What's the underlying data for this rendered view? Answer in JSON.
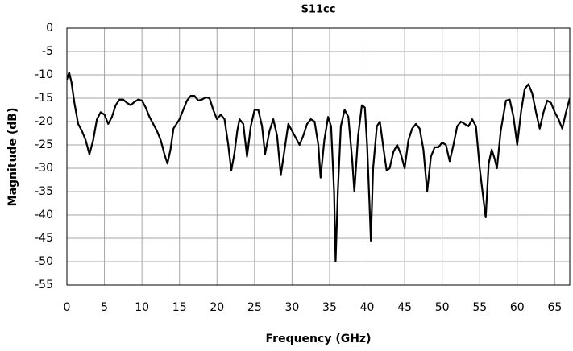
{
  "chart_data": {
    "type": "line",
    "title": "S11cc",
    "x_label": "Frequency (GHz)",
    "y_label": "Magnitude (dB)",
    "xlim": [
      0,
      67
    ],
    "ylim": [
      -55,
      0
    ],
    "xticks": [
      0,
      5,
      10,
      15,
      20,
      25,
      30,
      35,
      40,
      45,
      50,
      55,
      60,
      65
    ],
    "yticks": [
      0,
      -5,
      -10,
      -15,
      -20,
      -25,
      -30,
      -35,
      -40,
      -45,
      -50,
      -55
    ],
    "grid": true,
    "x": [
      0,
      0.3,
      0.6,
      1,
      1.5,
      2,
      2.5,
      3,
      3.5,
      4,
      4.5,
      5,
      5.5,
      6,
      6.5,
      7,
      7.5,
      8,
      8.5,
      9,
      9.5,
      10,
      10.5,
      11,
      12,
      12.5,
      13,
      13.4,
      13.8,
      14.2,
      15,
      15.5,
      16,
      16.5,
      17,
      17.5,
      18,
      18.5,
      19,
      19.5,
      20,
      20.5,
      21,
      21.5,
      21.9,
      22.3,
      22.7,
      23,
      23.5,
      24,
      24.5,
      25,
      25.5,
      26,
      26.4,
      27,
      27.5,
      28,
      28.5,
      29,
      29.5,
      30,
      31,
      31.5,
      32,
      32.5,
      33,
      33.5,
      33.8,
      34.3,
      34.8,
      35.2,
      35.6,
      35.8,
      36.1,
      36.5,
      37,
      37.5,
      38,
      38.3,
      38.8,
      39.3,
      39.7,
      40,
      40.3,
      40.5,
      40.8,
      41.3,
      41.7,
      42.2,
      42.6,
      43,
      43.5,
      44,
      44.5,
      45,
      45.5,
      46,
      46.5,
      47,
      47.5,
      48,
      48.5,
      49,
      49.5,
      50,
      50.5,
      51,
      51.5,
      52,
      52.5,
      53,
      53.5,
      54,
      54.5,
      55,
      55.6,
      55.8,
      56.2,
      56.6,
      57,
      57.3,
      57.8,
      58.5,
      59,
      59.5,
      60,
      60.5,
      61,
      61.5,
      62,
      62.5,
      63,
      63.5,
      64,
      64.5,
      65,
      65.5,
      66,
      66.5,
      67
    ],
    "series": [
      {
        "name": "S11cc",
        "color": "#000000",
        "values": [
          -11,
          -9.5,
          -11.5,
          -16,
          -20.5,
          -22,
          -24,
          -27,
          -24,
          -19.5,
          -18,
          -18.5,
          -20.5,
          -19,
          -16.5,
          -15.3,
          -15.3,
          -16,
          -16.5,
          -15.8,
          -15.3,
          -15.5,
          -17,
          -19,
          -22,
          -24,
          -27,
          -29,
          -26,
          -21.5,
          -19.5,
          -17.5,
          -15.5,
          -14.5,
          -14.5,
          -15.5,
          -15.3,
          -14.8,
          -15,
          -17.5,
          -19.5,
          -18.5,
          -19.5,
          -25,
          -30.5,
          -27,
          -22,
          -19.5,
          -20.5,
          -27.5,
          -21,
          -17.5,
          -17.5,
          -21,
          -27,
          -22,
          -19.5,
          -23,
          -31.5,
          -26,
          -20.5,
          -22,
          -25,
          -23,
          -20.5,
          -19.5,
          -20,
          -25,
          -32,
          -24,
          -19,
          -21,
          -35,
          -50,
          -35,
          -21,
          -17.5,
          -19,
          -28,
          -35,
          -23,
          -16.5,
          -17,
          -25,
          -37,
          -45.5,
          -30,
          -21,
          -20,
          -26,
          -30.5,
          -30,
          -26.5,
          -25,
          -27,
          -30,
          -24,
          -21.5,
          -20.5,
          -21.5,
          -26,
          -35,
          -27.5,
          -25.5,
          -25.5,
          -24.5,
          -25,
          -28.5,
          -25,
          -21,
          -20,
          -20.5,
          -21,
          -19.5,
          -21,
          -30,
          -38,
          -40.5,
          -29,
          -26,
          -28,
          -30,
          -22,
          -15.5,
          -15.3,
          -19,
          -25,
          -18,
          -13,
          -12,
          -14,
          -18,
          -21.5,
          -18,
          -15.5,
          -16,
          -18,
          -19.5,
          -21.5,
          -18,
          -15
        ]
      }
    ]
  }
}
